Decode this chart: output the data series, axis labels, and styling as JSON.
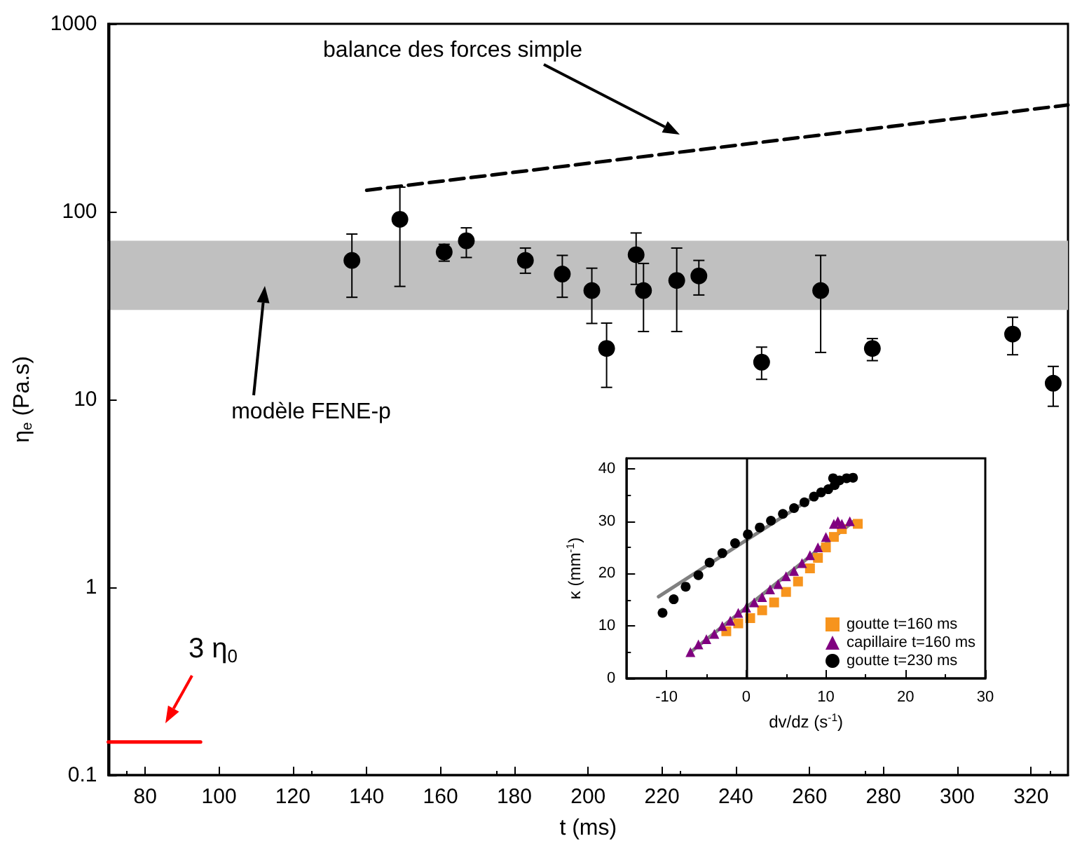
{
  "chart_data": [
    {
      "type": "scatter",
      "xlabel": "t (ms)",
      "ylabel": "η$_{e}$ (Pa.s)",
      "xlim": [
        70,
        330
      ],
      "xticks": [
        80,
        100,
        120,
        140,
        160,
        180,
        200,
        220,
        240,
        260,
        280,
        300,
        320
      ],
      "ylim": [
        0.1,
        1000
      ],
      "yticks": [
        0.1,
        1,
        10,
        100,
        1000
      ],
      "log": "y",
      "grid": false,
      "marker": "circle",
      "series": [
        {
          "color": "#000000",
          "x": [
            136,
            149,
            161,
            167,
            183,
            193,
            201,
            205,
            213,
            215,
            224,
            230,
            247,
            263,
            277,
            315,
            326
          ],
          "values": [
            55,
            91,
            61,
            70,
            55,
            46.5,
            38,
            18.7,
            59,
            38,
            43,
            45.5,
            15.8,
            38,
            18.7,
            22.3,
            12.2
          ],
          "errors": [
            [
              35,
              76
            ],
            [
              40,
              135
            ],
            [
              54.5,
              67
            ],
            [
              57,
              82
            ],
            [
              47,
              64
            ],
            [
              35,
              58.5
            ],
            [
              25.4,
              50
            ],
            [
              11.6,
              25.5
            ],
            [
              41,
              77
            ],
            [
              23,
              53
            ],
            [
              23,
              64
            ],
            [
              36,
              55
            ],
            [
              12.8,
              19
            ],
            [
              17.8,
              58.5
            ],
            [
              16.1,
              21.1
            ],
            [
              17.3,
              27.4
            ],
            [
              9.2,
              15
            ]
          ]
        },
        {
          "type": "line",
          "color": "#000000",
          "x": [
            140,
            330
          ],
          "values": [
            130,
            370
          ],
          "line_style": "dashed",
          "marker": "none"
        },
        {
          "type": "line",
          "color": "#ff0000",
          "x": [
            70,
            95
          ],
          "values": [
            0.15,
            0.15
          ],
          "marker": "none"
        }
      ],
      "bands": [
        {
          "axis": "y",
          "from": 30,
          "to": 70,
          "color": "#c0c0c0"
        }
      ],
      "annotations": [
        "balance des forces simple",
        "modèle FENE-p",
        "3 η$_{0}$"
      ]
    },
    {
      "type": "scatter",
      "xlabel": "dv/dz (s$^{-1}$)",
      "ylabel": "κ (mm$^{-1}$)",
      "xlim": [
        -15,
        30
      ],
      "xticks": [
        -10,
        0,
        10,
        20,
        30
      ],
      "ylim": [
        0,
        42
      ],
      "yticks": [
        0,
        10,
        20,
        30,
        40
      ],
      "grid": false,
      "legend": "bottom right",
      "ref_lines": [
        {
          "axis": "x",
          "value": 0,
          "color": "#000000"
        }
      ],
      "series": [
        {
          "name": "goutte t=160 ms",
          "marker": "square",
          "color": "#f7941d",
          "x": [
            -2.5,
            -1,
            0.5,
            2,
            3.5,
            5,
            6.5,
            8,
            9,
            10,
            11,
            12,
            13,
            14
          ],
          "values": [
            9,
            10.5,
            11.5,
            13,
            14.5,
            16.5,
            18.5,
            21,
            23,
            25,
            27,
            28.5,
            null,
            29.5
          ]
        },
        {
          "name": "capillaire t=160 ms",
          "marker": "triangle",
          "color": "#800080",
          "x": [
            -7,
            -6,
            -5,
            -4,
            -3,
            -2,
            -1,
            0,
            1,
            2,
            3,
            4,
            5,
            6,
            7,
            8,
            9,
            10,
            11,
            11.5,
            12,
            13
          ],
          "values": [
            5,
            6.5,
            7.5,
            8.5,
            10,
            11,
            12.5,
            13.5,
            14.5,
            15.5,
            17,
            18,
            19.5,
            20.5,
            22,
            23.5,
            25,
            27,
            29.5,
            30,
            29.5,
            30
          ]
        },
        {
          "name": "goutte t=230 ms",
          "marker": "circle",
          "color": "#000000",
          "x": [
            -10.5,
            -9.1,
            -7.6,
            -6,
            -4.6,
            -3,
            -1.4,
            0.2,
            1.7,
            3.1,
            4.6,
            6,
            7.3,
            8.5,
            9.4,
            10.3,
            11.1,
            10.9,
            11.7,
            12.6,
            13.4
          ],
          "values": [
            12.5,
            15.1,
            17.5,
            19.7,
            22.1,
            23.9,
            25.8,
            27.5,
            28.8,
            30.1,
            31.4,
            32.5,
            33.6,
            34.7,
            35.5,
            36.1,
            36.9,
            38.2,
            37.8,
            38.2,
            38.3
          ]
        },
        {
          "type": "line",
          "marker": "none",
          "color": "#808080",
          "x": [
            -11,
            12.6
          ],
          "values": [
            15.6,
            38.7
          ]
        },
        {
          "type": "line",
          "marker": "none",
          "color": "#808080",
          "x": [
            -7,
            13.5
          ],
          "values": [
            5,
            30
          ]
        }
      ]
    }
  ]
}
